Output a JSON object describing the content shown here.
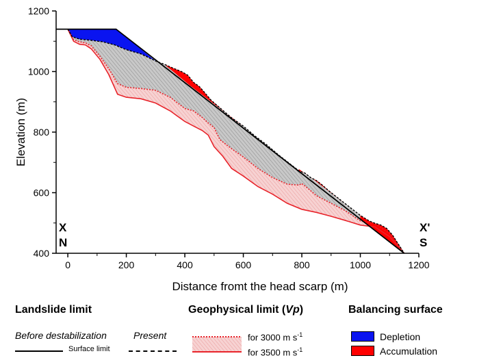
{
  "chart_data": {
    "type": "area",
    "xlabel": "Distance fromt the head scarp (m)",
    "ylabel": "Elevation (m)",
    "xlim": [
      -40,
      1200
    ],
    "ylim": [
      400,
      1200
    ],
    "xticks": [
      "0",
      "200",
      "400",
      "600",
      "800",
      "1000",
      "1200"
    ],
    "yticks": [
      "400",
      "600",
      "800",
      "1000",
      "1200"
    ],
    "corner_left": [
      "X",
      "N"
    ],
    "corner_right": [
      "X'",
      "S"
    ],
    "series": {
      "before_surface": {
        "x": [
          -40,
          165,
          1150
        ],
        "y": [
          1140,
          1140,
          400
        ]
      },
      "present_surface": {
        "x": [
          0,
          15,
          40,
          80,
          120,
          160,
          200,
          250,
          300,
          330,
          360,
          390,
          410,
          430,
          450,
          470,
          490,
          520,
          560,
          600,
          640,
          680,
          720,
          760,
          790,
          810,
          830,
          850,
          870,
          890,
          920,
          960,
          1000,
          1030,
          1050,
          1070,
          1090,
          1110,
          1130,
          1150
        ],
        "y": [
          1140,
          1115,
          1107,
          1103,
          1098,
          1088,
          1072,
          1058,
          1035,
          1024,
          1011,
          999,
          988,
          964,
          950,
          928,
          905,
          880,
          847,
          820,
          787,
          758,
          725,
          695,
          672,
          665,
          650,
          640,
          625,
          608,
          585,
          555,
          525,
          507,
          499,
          493,
          482,
          460,
          430,
          400
        ]
      },
      "vp3000": {
        "x": [
          0,
          20,
          40,
          60,
          80,
          110,
          140,
          170,
          200,
          250,
          300,
          350,
          400,
          430,
          460,
          480,
          500,
          520,
          560,
          600,
          650,
          700,
          750,
          790,
          800,
          820,
          850,
          900,
          950,
          1000,
          1050,
          1100,
          1150
        ],
        "y": [
          1140,
          1105,
          1098,
          1095,
          1085,
          1050,
          1010,
          960,
          948,
          944,
          938,
          915,
          878,
          870,
          848,
          830,
          815,
          775,
          745,
          718,
          680,
          650,
          628,
          625,
          630,
          615,
          590,
          565,
          540,
          507,
          498,
          465,
          400
        ]
      },
      "vp3500": {
        "x": [
          0,
          20,
          40,
          60,
          80,
          110,
          140,
          170,
          200,
          250,
          300,
          350,
          400,
          430,
          460,
          480,
          500,
          530,
          560,
          600,
          650,
          700,
          750,
          800,
          850,
          900,
          950,
          1000,
          1050,
          1100,
          1150
        ],
        "y": [
          1140,
          1100,
          1090,
          1088,
          1075,
          1040,
          990,
          925,
          915,
          910,
          896,
          870,
          835,
          820,
          805,
          790,
          752,
          720,
          680,
          655,
          620,
          595,
          565,
          545,
          535,
          522,
          508,
          493,
          487,
          455,
          400
        ]
      },
      "depletion": {
        "x": [
          0,
          15,
          40,
          80,
          120,
          160,
          200,
          250,
          300,
          165
        ],
        "y": [
          1140,
          1115,
          1107,
          1103,
          1098,
          1088,
          1072,
          1058,
          1035,
          1140
        ]
      },
      "accumulation": [
        {
          "x": [
            330,
            360,
            390,
            410,
            430,
            450,
            470,
            490,
            520,
            560,
            600,
            505,
            420,
            330
          ],
          "y": [
            1024,
            1011,
            999,
            988,
            964,
            950,
            928,
            905,
            880,
            847,
            820,
            889,
            952,
            1024
          ]
        },
        {
          "x": [
            790,
            810,
            830,
            850,
            870,
            890,
            920,
            960,
            895,
            845,
            790
          ],
          "y": [
            672,
            665,
            650,
            640,
            625,
            608,
            585,
            555,
            603,
            640,
            678
          ]
        },
        {
          "x": [
            1000,
            1030,
            1050,
            1070,
            1090,
            1110,
            1130,
            1150,
            1100,
            1050,
            1000
          ],
          "y": [
            525,
            507,
            499,
            493,
            482,
            460,
            430,
            400,
            437,
            474,
            511
          ]
        }
      ]
    },
    "colors": {
      "depletion": "#0a14f0",
      "accumulation": "#ff0000",
      "slide_body": "#b4b4b4",
      "geophysical_fill": "#f4c4c4",
      "geophysical_line": "#e8232a"
    }
  },
  "legend": {
    "landslide_title": "Landslide limit",
    "before_label": "Before destabilization",
    "present_label": "Present",
    "surface_limit_label": "Surface limit",
    "geophysical_title_main": "Geophysical limit (",
    "geophysical_title_vp": "Vp",
    "geophysical_title_end": ")",
    "vp3000_label": "for 3000 m s",
    "vp3500_label": "for 3500 m s",
    "unit_exponent": "-1",
    "balancing_title": "Balancing surface",
    "depletion_label": "Depletion",
    "accumulation_label": "Accumulation"
  }
}
